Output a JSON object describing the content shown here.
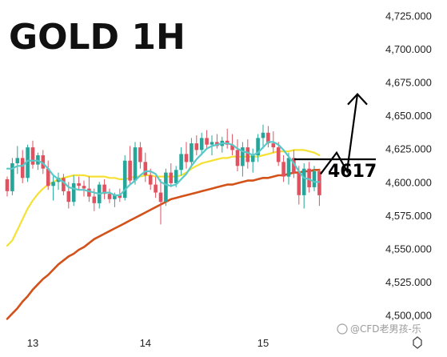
{
  "chart_data": {
    "type": "candlestick",
    "title": "GOLD 1H",
    "x_ticks": [
      "13",
      "14",
      "15"
    ],
    "y_ticks": [
      "4,500,000",
      "4,525.000",
      "4,550.000",
      "4,575.000",
      "4,600.000",
      "4,625.000",
      "4,650.000",
      "4,675.000",
      "4,700.000",
      "4,725.000"
    ],
    "ylim": [
      4493,
      4732
    ],
    "candle_count": 62,
    "candles": [
      [
        4602,
        4604,
        4589,
        4593
      ],
      [
        4593,
        4618,
        4590,
        4614
      ],
      [
        4614,
        4627,
        4606,
        4618
      ],
      [
        4618,
        4624,
        4599,
        4603
      ],
      [
        4603,
        4628,
        4600,
        4626
      ],
      [
        4626,
        4631,
        4610,
        4613
      ],
      [
        4613,
        4622,
        4609,
        4620
      ],
      [
        4620,
        4624,
        4606,
        4610
      ],
      [
        4610,
        4616,
        4594,
        4597
      ],
      [
        4597,
        4605,
        4586,
        4600
      ],
      [
        4600,
        4607,
        4594,
        4603
      ],
      [
        4603,
        4606,
        4590,
        4593
      ],
      [
        4593,
        4600,
        4580,
        4585
      ],
      [
        4585,
        4605,
        4582,
        4599
      ],
      [
        4599,
        4604,
        4594,
        4597
      ],
      [
        4597,
        4601,
        4589,
        4595
      ],
      [
        4595,
        4604,
        4585,
        4589
      ],
      [
        4589,
        4595,
        4578,
        4584
      ],
      [
        4584,
        4600,
        4580,
        4598
      ],
      [
        4598,
        4602,
        4587,
        4591
      ],
      [
        4591,
        4595,
        4584,
        4587
      ],
      [
        4587,
        4592,
        4581,
        4590
      ],
      [
        4590,
        4595,
        4585,
        4588
      ],
      [
        4588,
        4620,
        4586,
        4616
      ],
      [
        4616,
        4627,
        4598,
        4601
      ],
      [
        4601,
        4630,
        4598,
        4626
      ],
      [
        4626,
        4630,
        4610,
        4615
      ],
      [
        4615,
        4622,
        4600,
        4605
      ],
      [
        4605,
        4610,
        4594,
        4598
      ],
      [
        4598,
        4604,
        4588,
        4592
      ],
      [
        4592,
        4602,
        4568,
        4585
      ],
      [
        4585,
        4610,
        4582,
        4607
      ],
      [
        4607,
        4614,
        4596,
        4599
      ],
      [
        4599,
        4612,
        4596,
        4609
      ],
      [
        4609,
        4626,
        4605,
        4621
      ],
      [
        4621,
        4630,
        4610,
        4615
      ],
      [
        4615,
        4633,
        4612,
        4629
      ],
      [
        4629,
        4635,
        4620,
        4624
      ],
      [
        4624,
        4637,
        4620,
        4633
      ],
      [
        4633,
        4639,
        4625,
        4628
      ],
      [
        4628,
        4635,
        4620,
        4630
      ],
      [
        4630,
        4636,
        4625,
        4627
      ],
      [
        4627,
        4634,
        4622,
        4631
      ],
      [
        4631,
        4640,
        4625,
        4628
      ],
      [
        4628,
        4636,
        4620,
        4624
      ],
      [
        4624,
        4632,
        4608,
        4612
      ],
      [
        4612,
        4630,
        4604,
        4626
      ],
      [
        4626,
        4632,
        4610,
        4615
      ],
      [
        4615,
        4625,
        4607,
        4620
      ],
      [
        4620,
        4636,
        4615,
        4633
      ],
      [
        4633,
        4643,
        4625,
        4637
      ],
      [
        4637,
        4642,
        4626,
        4629
      ],
      [
        4629,
        4638,
        4622,
        4626
      ],
      [
        4626,
        4630,
        4612,
        4615
      ],
      [
        4615,
        4620,
        4600,
        4604
      ],
      [
        4604,
        4622,
        4598,
        4618
      ],
      [
        4618,
        4624,
        4603,
        4607
      ],
      [
        4607,
        4612,
        4583,
        4590
      ],
      [
        4590,
        4614,
        4580,
        4610
      ],
      [
        4610,
        4615,
        4592,
        4596
      ],
      [
        4596,
        4612,
        4593,
        4608
      ],
      [
        4608,
        4610,
        4582,
        4590
      ]
    ],
    "ma_fast": [
      4610,
      4610,
      4612,
      4612,
      4616,
      4616,
      4616,
      4614,
      4610,
      4605,
      4602,
      4600,
      4596,
      4595,
      4594,
      4594,
      4593,
      4592,
      4591,
      4592,
      4592,
      4590,
      4590,
      4594,
      4598,
      4601,
      4605,
      4608,
      4608,
      4606,
      4600,
      4598,
      4597,
      4598,
      4602,
      4606,
      4612,
      4617,
      4621,
      4625,
      4627,
      4628,
      4629,
      4629,
      4628,
      4625,
      4623,
      4622,
      4620,
      4622,
      4626,
      4630,
      4630,
      4628,
      4624,
      4619,
      4614,
      4608,
      4603,
      4602,
      4600,
      4600
    ],
    "ma_medium": [
      4552,
      4556,
      4564,
      4572,
      4580,
      4586,
      4591,
      4595,
      4598,
      4600,
      4602,
      4603,
      4604,
      4605,
      4605,
      4605,
      4604,
      4604,
      4604,
      4604,
      4603,
      4603,
      4602,
      4602,
      4603,
      4604,
      4604,
      4605,
      4605,
      4604,
      4604,
      4604,
      4604,
      4604,
      4605,
      4607,
      4610,
      4612,
      4614,
      4615,
      4616,
      4617,
      4618,
      4618,
      4619,
      4619,
      4619,
      4619,
      4619,
      4619,
      4620,
      4621,
      4622,
      4623,
      4623,
      4623,
      4624,
      4624,
      4624,
      4623,
      4622,
      4620
    ],
    "ma_slow": [
      4497,
      4501,
      4505,
      4510,
      4514,
      4519,
      4523,
      4527,
      4530,
      4534,
      4538,
      4541,
      4544,
      4546,
      4549,
      4551,
      4554,
      4557,
      4559,
      4561,
      4563,
      4565,
      4567,
      4569,
      4571,
      4573,
      4575,
      4577,
      4579,
      4581,
      4583,
      4585,
      4587,
      4588,
      4589,
      4590,
      4591,
      4592,
      4593,
      4594,
      4595,
      4596,
      4597,
      4598,
      4598,
      4599,
      4600,
      4601,
      4601,
      4602,
      4603,
      4603,
      4604,
      4605,
      4605,
      4606,
      4607,
      4607,
      4608,
      4608,
      4609,
      4609
    ],
    "annotation": {
      "level_label": "4617",
      "level_value": 4617,
      "projection": [
        4606,
        4622,
        4608,
        4666
      ]
    },
    "colors": {
      "up": "#26a69a",
      "down": "#e05260",
      "ma_fast": "#5bc8c8",
      "ma_medium": "#f5e133",
      "ma_slow": "#d2521a",
      "annotation": "#000000"
    },
    "grid": false,
    "legend": "none"
  },
  "watermark": "@CFD老男孩-乐"
}
